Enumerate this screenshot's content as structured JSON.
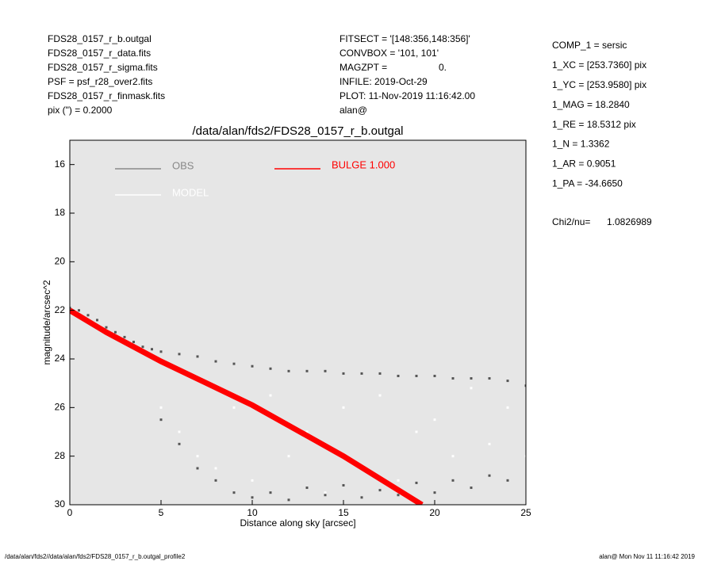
{
  "header": {
    "left": [
      "FDS28_0157_r_b.outgal",
      "FDS28_0157_r_data.fits",
      "FDS28_0157_r_sigma.fits",
      "PSF    = psf_r28_over2.fits",
      "FDS28_0157_r_finmask.fits",
      "pix (\") =  0.2000"
    ],
    "middle": [
      "FITSECT = '[148:356,148:356]'",
      "CONVBOX = '101, 101'",
      "MAGZPT  =",
      "INFILE: 2019-Oct-29",
      "PLOT: 11-Nov-2019 11:16:42.00",
      "alan@"
    ],
    "magzpt_value": "0.",
    "right": [
      "COMP_1  = sersic",
      "1_XC    = [253.7360] pix",
      "1_YC    = [253.9580] pix",
      "1_MAG   = 18.2840",
      "1_RE    = 18.5312 pix",
      "1_N     = 1.3362",
      "1_AR    = 0.9051",
      "1_PA    = -34.6650"
    ],
    "chi2_label": "Chi2/nu=",
    "chi2_value": 1.0826989
  },
  "footer": {
    "left": "/data/alan/fds2//data/alan/fds2/FDS28_0157_r_b.outgal_profile2",
    "right": "alan@  Mon Nov 11 11:16:42 2019"
  },
  "chart_data": {
    "type": "scatter",
    "title": "/data/alan/fds2/FDS28_0157_r_b.outgal",
    "x_label": "Distance along sky [arcsec]",
    "y_label": "magnitude/arcsec^2",
    "xlim": [
      0,
      25
    ],
    "ylim": [
      30,
      15
    ],
    "xticks": [
      0,
      5,
      10,
      15,
      20,
      25
    ],
    "yticks": [
      16,
      18,
      20,
      22,
      24,
      26,
      28,
      30
    ],
    "y_inverted": true,
    "background": "#e6e6e6",
    "series": [
      {
        "name": "OBS",
        "color": "#555555",
        "legend_color": "#888888",
        "kind": "points",
        "x": [
          0,
          0.5,
          1,
          1.5,
          2,
          2.5,
          3,
          3.5,
          4,
          4.5,
          5,
          6,
          7,
          8,
          9,
          10,
          11,
          12,
          13,
          14,
          15,
          16,
          17,
          18,
          19,
          20,
          21,
          22,
          23,
          24,
          25,
          5,
          6,
          7,
          8,
          9,
          10,
          11,
          12,
          13,
          14,
          15,
          16,
          17,
          18,
          19,
          20,
          21,
          22,
          23,
          24
        ],
        "values": [
          21.9,
          22.0,
          22.2,
          22.4,
          22.7,
          22.9,
          23.1,
          23.3,
          23.5,
          23.6,
          23.7,
          23.8,
          23.9,
          24.1,
          24.2,
          24.3,
          24.4,
          24.5,
          24.5,
          24.5,
          24.6,
          24.6,
          24.6,
          24.7,
          24.7,
          24.7,
          24.8,
          24.8,
          24.8,
          24.9,
          25.1,
          26.5,
          27.5,
          28.5,
          29.0,
          29.5,
          29.7,
          29.5,
          29.8,
          29.3,
          29.6,
          29.2,
          29.7,
          29.4,
          29.6,
          29.1,
          29.5,
          29.0,
          29.3,
          28.8,
          29.0
        ]
      },
      {
        "name": "MODEL",
        "color": "#ffffff",
        "legend_color": "#ffffff",
        "kind": "points",
        "x": [
          5,
          6,
          7,
          8,
          9,
          10,
          11,
          12,
          13,
          14,
          15,
          16,
          17,
          18,
          19,
          20,
          21,
          22,
          23,
          24,
          25
        ],
        "values": [
          26,
          27,
          28,
          28.5,
          26,
          29,
          25.5,
          28,
          27,
          29.5,
          26,
          28.5,
          25.5,
          29,
          27,
          26.5,
          28,
          25.2,
          27.5,
          26,
          28
        ]
      },
      {
        "name": "BULGE  1.000",
        "color": "#ff0000",
        "legend_color": "#ff0000",
        "kind": "line",
        "x": [
          0,
          2,
          5,
          10,
          15,
          19.3
        ],
        "values": [
          22.0,
          22.9,
          24.1,
          25.9,
          28.0,
          30.0
        ]
      }
    ]
  }
}
